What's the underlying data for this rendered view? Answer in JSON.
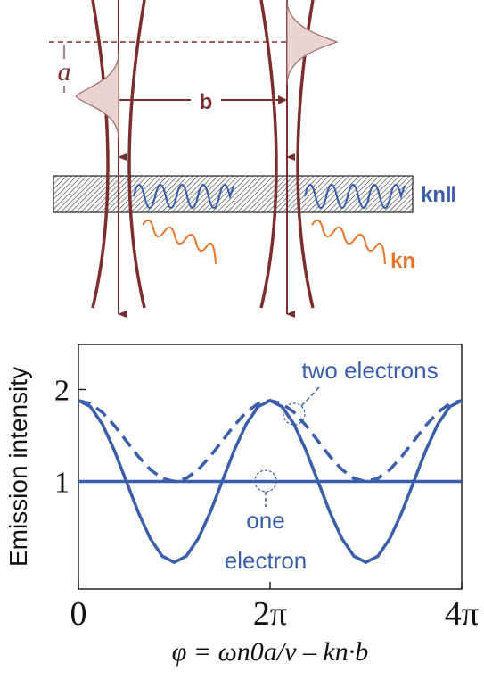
{
  "diagram": {
    "labels": {
      "a": "a",
      "b": "b",
      "k_parallel": "kn‖",
      "k": "kn"
    }
  },
  "chart_data": {
    "type": "line",
    "x": [
      0,
      0.393,
      0.785,
      1.178,
      1.571,
      1.963,
      2.356,
      2.749,
      3.142,
      3.534,
      3.927,
      4.32,
      4.712,
      5.105,
      5.498,
      5.89,
      6.283,
      6.676,
      7.069,
      7.461,
      7.854,
      8.247,
      8.639,
      9.032,
      9.425,
      9.817,
      10.21,
      10.603,
      10.996,
      11.388,
      11.781,
      12.174,
      12.566
    ],
    "series": [
      {
        "name": "two electrons (solid)",
        "color": "#3a5ea8",
        "dash": false,
        "values": [
          1.88,
          1.813,
          1.622,
          1.337,
          1,
          0.663,
          0.378,
          0.187,
          0.12,
          0.187,
          0.378,
          0.663,
          1,
          1.337,
          1.622,
          1.813,
          1.88,
          1.813,
          1.622,
          1.337,
          1,
          0.663,
          0.378,
          0.187,
          0.12,
          0.187,
          0.378,
          0.663,
          1,
          1.337,
          1.622,
          1.813,
          1.88
        ]
      },
      {
        "name": "two electrons (dashed)",
        "color": "#3a5ea8",
        "dash": true,
        "values": [
          1.88,
          1.847,
          1.751,
          1.608,
          1.44,
          1.272,
          1.129,
          1.033,
          1,
          1.033,
          1.129,
          1.272,
          1.44,
          1.608,
          1.751,
          1.847,
          1.88,
          1.847,
          1.751,
          1.608,
          1.44,
          1.272,
          1.129,
          1.033,
          1,
          1.033,
          1.129,
          1.272,
          1.44,
          1.608,
          1.751,
          1.847,
          1.88
        ]
      },
      {
        "name": "one electron",
        "color": "#3a5ea8",
        "dash": false,
        "values": [
          1,
          1,
          1,
          1,
          1,
          1,
          1,
          1,
          1,
          1,
          1,
          1,
          1,
          1,
          1,
          1,
          1,
          1,
          1,
          1,
          1,
          1,
          1,
          1,
          1,
          1,
          1,
          1,
          1,
          1,
          1,
          1,
          1
        ]
      }
    ],
    "xlim": [
      0,
      12.566
    ],
    "ylim": [
      -0.17,
      2.49
    ],
    "xticks": [
      0,
      {
        "value": 6.283,
        "label": "2π"
      },
      {
        "value": 12.566,
        "label": "4π"
      }
    ],
    "yticks": [
      1,
      2
    ],
    "ylabel": "Emission intensity",
    "xlabel": "φ = ωn0a/v – kn·b",
    "annotations": {
      "two": "two electrons",
      "one": [
        "one",
        "electron"
      ]
    }
  }
}
